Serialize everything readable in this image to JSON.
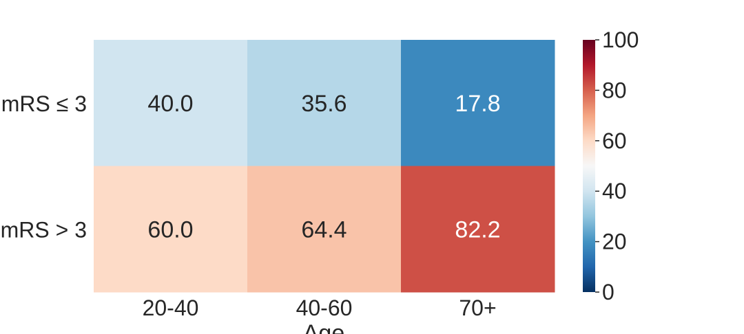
{
  "chart_data": {
    "type": "heatmap",
    "title": "",
    "xlabel": "Age",
    "ylabel": "",
    "x_categories": [
      "20-40",
      "40-60",
      "70+"
    ],
    "y_categories": [
      "mRS ≤ 3",
      "mRS > 3"
    ],
    "values": [
      [
        40.0,
        35.6,
        17.8
      ],
      [
        60.0,
        64.4,
        82.2
      ]
    ],
    "value_labels": [
      [
        "40.0",
        "35.6",
        "17.8"
      ],
      [
        "60.0",
        "64.4",
        "82.2"
      ]
    ],
    "colormap": "RdBu_r",
    "colorbar": {
      "range": [
        0,
        100
      ],
      "ticks": [
        0,
        20,
        40,
        60,
        80,
        100
      ],
      "tick_labels": [
        "0",
        "20",
        "40",
        "60",
        "80",
        "100"
      ]
    },
    "grid": false
  }
}
